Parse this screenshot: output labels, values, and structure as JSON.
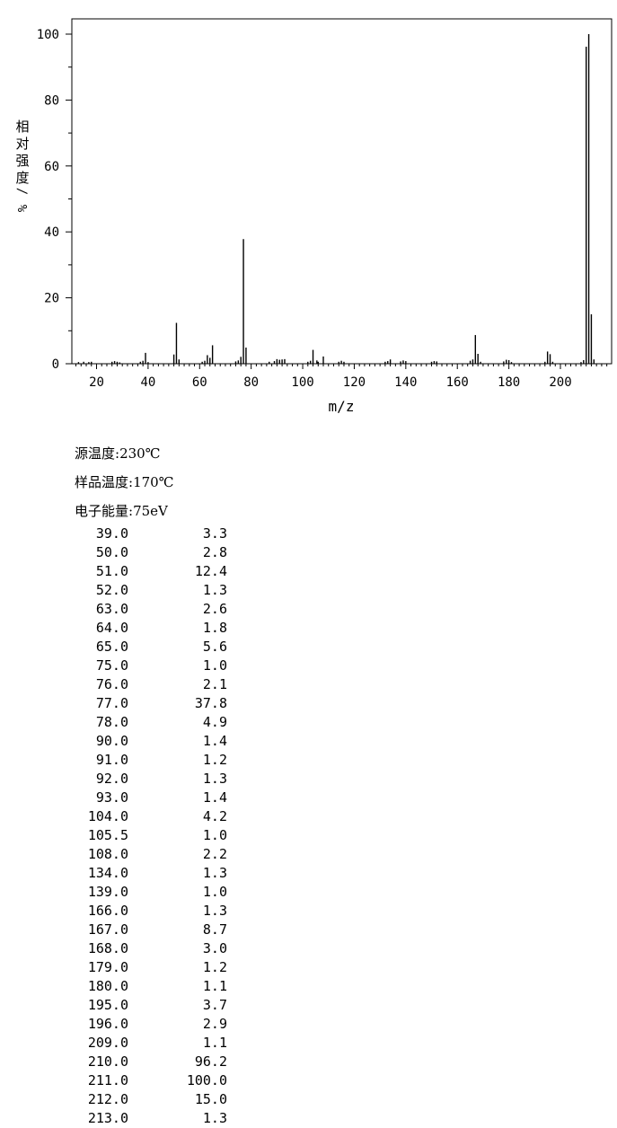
{
  "chart_data": {
    "type": "bar",
    "xlabel": "m/z",
    "ylabel": "相对强度/%",
    "xlim": [
      10,
      220
    ],
    "ylim": [
      0,
      105
    ],
    "x_ticks": [
      "20",
      "40",
      "60",
      "80",
      "100",
      "120",
      "140",
      "160",
      "180",
      "200"
    ],
    "y_ticks": [
      "0",
      "20",
      "40",
      "60",
      "80",
      "100"
    ],
    "peaks": [
      {
        "mz": 13,
        "intensity": 0.5
      },
      {
        "mz": 15,
        "intensity": 0.6
      },
      {
        "mz": 17,
        "intensity": 0.5
      },
      {
        "mz": 18,
        "intensity": 0.6
      },
      {
        "mz": 26,
        "intensity": 0.6
      },
      {
        "mz": 27,
        "intensity": 0.8
      },
      {
        "mz": 28,
        "intensity": 0.6
      },
      {
        "mz": 29,
        "intensity": 0.4
      },
      {
        "mz": 37,
        "intensity": 0.6
      },
      {
        "mz": 38,
        "intensity": 0.9
      },
      {
        "mz": 39.0,
        "intensity": 3.3
      },
      {
        "mz": 40,
        "intensity": 0.5
      },
      {
        "mz": 50.0,
        "intensity": 2.8
      },
      {
        "mz": 51.0,
        "intensity": 12.4
      },
      {
        "mz": 52.0,
        "intensity": 1.3
      },
      {
        "mz": 61,
        "intensity": 0.6
      },
      {
        "mz": 62,
        "intensity": 0.9
      },
      {
        "mz": 63.0,
        "intensity": 2.6
      },
      {
        "mz": 64.0,
        "intensity": 1.8
      },
      {
        "mz": 65.0,
        "intensity": 5.6
      },
      {
        "mz": 74,
        "intensity": 0.7
      },
      {
        "mz": 75.0,
        "intensity": 1.0
      },
      {
        "mz": 76.0,
        "intensity": 2.1
      },
      {
        "mz": 77.0,
        "intensity": 37.8
      },
      {
        "mz": 78.0,
        "intensity": 4.9
      },
      {
        "mz": 87,
        "intensity": 0.6
      },
      {
        "mz": 89,
        "intensity": 0.8
      },
      {
        "mz": 90.0,
        "intensity": 1.4
      },
      {
        "mz": 91.0,
        "intensity": 1.2
      },
      {
        "mz": 92.0,
        "intensity": 1.3
      },
      {
        "mz": 93.0,
        "intensity": 1.4
      },
      {
        "mz": 102,
        "intensity": 0.6
      },
      {
        "mz": 103,
        "intensity": 0.9
      },
      {
        "mz": 104.0,
        "intensity": 4.2
      },
      {
        "mz": 105.5,
        "intensity": 1.0
      },
      {
        "mz": 106,
        "intensity": 0.6
      },
      {
        "mz": 108.0,
        "intensity": 2.2
      },
      {
        "mz": 114,
        "intensity": 0.6
      },
      {
        "mz": 115,
        "intensity": 0.9
      },
      {
        "mz": 116,
        "intensity": 0.6
      },
      {
        "mz": 132,
        "intensity": 0.6
      },
      {
        "mz": 133,
        "intensity": 0.8
      },
      {
        "mz": 134.0,
        "intensity": 1.3
      },
      {
        "mz": 138,
        "intensity": 0.7
      },
      {
        "mz": 139.0,
        "intensity": 1.0
      },
      {
        "mz": 140,
        "intensity": 0.8
      },
      {
        "mz": 150,
        "intensity": 0.6
      },
      {
        "mz": 151,
        "intensity": 0.8
      },
      {
        "mz": 152,
        "intensity": 0.7
      },
      {
        "mz": 165,
        "intensity": 0.9
      },
      {
        "mz": 166.0,
        "intensity": 1.3
      },
      {
        "mz": 167.0,
        "intensity": 8.7
      },
      {
        "mz": 168.0,
        "intensity": 3.0
      },
      {
        "mz": 169,
        "intensity": 0.6
      },
      {
        "mz": 178,
        "intensity": 0.7
      },
      {
        "mz": 179.0,
        "intensity": 1.2
      },
      {
        "mz": 180.0,
        "intensity": 1.1
      },
      {
        "mz": 181,
        "intensity": 0.5
      },
      {
        "mz": 194,
        "intensity": 0.6
      },
      {
        "mz": 195.0,
        "intensity": 3.7
      },
      {
        "mz": 196.0,
        "intensity": 2.9
      },
      {
        "mz": 197,
        "intensity": 0.6
      },
      {
        "mz": 208,
        "intensity": 0.5
      },
      {
        "mz": 209.0,
        "intensity": 1.1
      },
      {
        "mz": 210.0,
        "intensity": 96.2
      },
      {
        "mz": 211.0,
        "intensity": 100.0
      },
      {
        "mz": 212.0,
        "intensity": 15.0
      },
      {
        "mz": 213.0,
        "intensity": 1.3
      }
    ]
  },
  "conditions": [
    {
      "label": "源温度",
      "value": ":230℃"
    },
    {
      "label": "样品温度",
      "value": ":170℃"
    },
    {
      "label": "电子能量",
      "value": ":75eV"
    }
  ],
  "table": [
    {
      "mz": "39.0",
      "intensity": "3.3"
    },
    {
      "mz": "50.0",
      "intensity": "2.8"
    },
    {
      "mz": "51.0",
      "intensity": "12.4"
    },
    {
      "mz": "52.0",
      "intensity": "1.3"
    },
    {
      "mz": "63.0",
      "intensity": "2.6"
    },
    {
      "mz": "64.0",
      "intensity": "1.8"
    },
    {
      "mz": "65.0",
      "intensity": "5.6"
    },
    {
      "mz": "75.0",
      "intensity": "1.0"
    },
    {
      "mz": "76.0",
      "intensity": "2.1"
    },
    {
      "mz": "77.0",
      "intensity": "37.8"
    },
    {
      "mz": "78.0",
      "intensity": "4.9"
    },
    {
      "mz": "90.0",
      "intensity": "1.4"
    },
    {
      "mz": "91.0",
      "intensity": "1.2"
    },
    {
      "mz": "92.0",
      "intensity": "1.3"
    },
    {
      "mz": "93.0",
      "intensity": "1.4"
    },
    {
      "mz": "104.0",
      "intensity": "4.2"
    },
    {
      "mz": "105.5",
      "intensity": "1.0"
    },
    {
      "mz": "108.0",
      "intensity": "2.2"
    },
    {
      "mz": "134.0",
      "intensity": "1.3"
    },
    {
      "mz": "139.0",
      "intensity": "1.0"
    },
    {
      "mz": "166.0",
      "intensity": "1.3"
    },
    {
      "mz": "167.0",
      "intensity": "8.7"
    },
    {
      "mz": "168.0",
      "intensity": "3.0"
    },
    {
      "mz": "179.0",
      "intensity": "1.2"
    },
    {
      "mz": "180.0",
      "intensity": "1.1"
    },
    {
      "mz": "195.0",
      "intensity": "3.7"
    },
    {
      "mz": "196.0",
      "intensity": "2.9"
    },
    {
      "mz": "209.0",
      "intensity": "1.1"
    },
    {
      "mz": "210.0",
      "intensity": "96.2"
    },
    {
      "mz": "211.0",
      "intensity": "100.0"
    },
    {
      "mz": "212.0",
      "intensity": "15.0"
    },
    {
      "mz": "213.0",
      "intensity": "1.3"
    }
  ]
}
